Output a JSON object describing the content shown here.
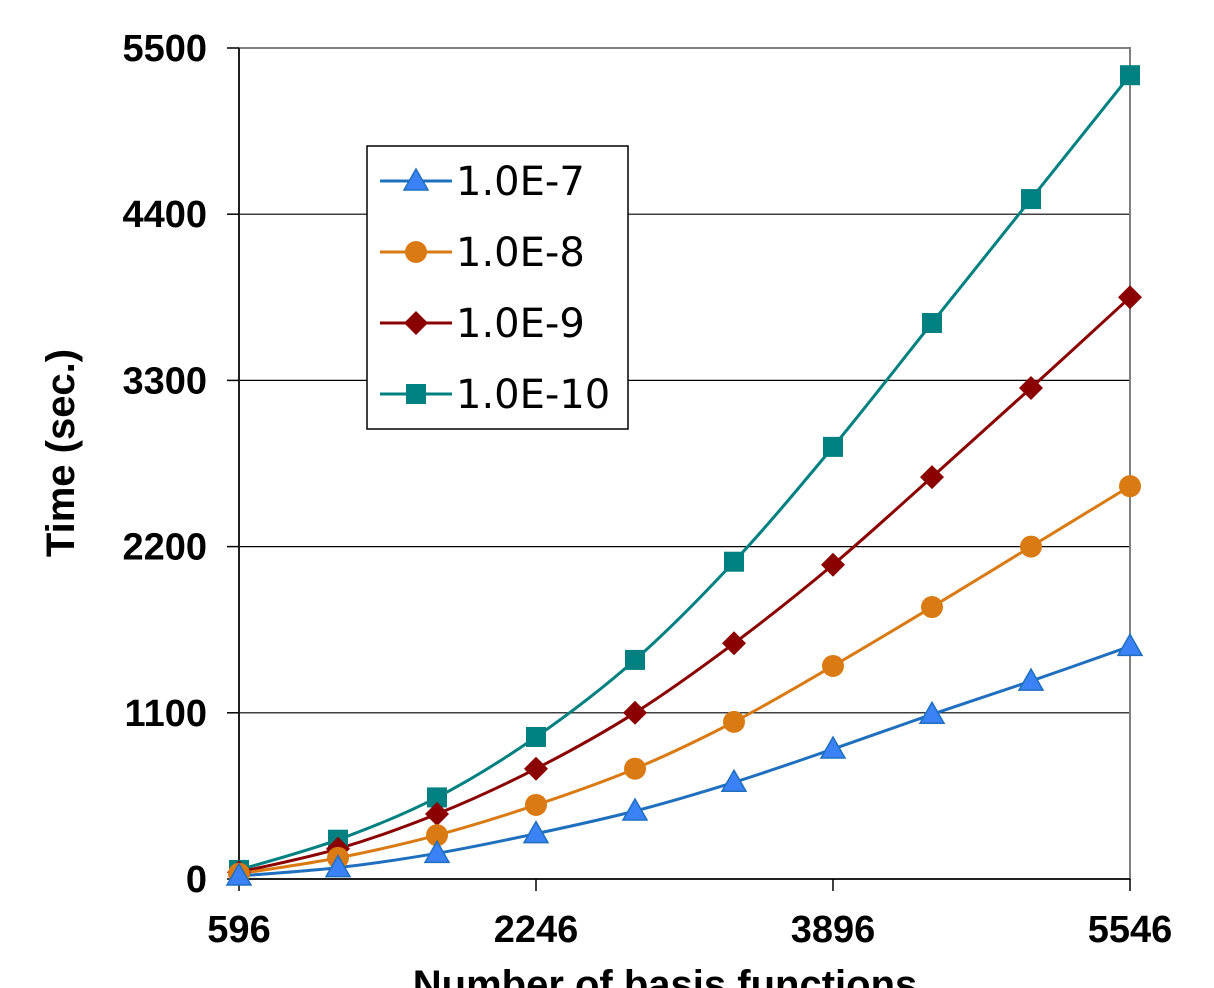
{
  "chart_data": {
    "type": "line",
    "title": "",
    "xlabel": "Number of basis functions",
    "ylabel": "Time (sec.)",
    "x": [
      596,
      1146,
      1696,
      2246,
      2796,
      3346,
      3896,
      4446,
      4996,
      5546
    ],
    "xticks": [
      "596",
      "2246",
      "3896",
      "5546"
    ],
    "xlim": [
      596,
      5546
    ],
    "yticks": [
      "0",
      "1100",
      "2200",
      "3300",
      "4400",
      "5500"
    ],
    "ylim": [
      0,
      5500
    ],
    "grid": "horizontal",
    "legend_position": "upper-left",
    "series": [
      {
        "name": "1.0E-7",
        "color": "#1f6fbf",
        "marker": "triangle",
        "values": [
          20,
          75,
          170,
          300,
          450,
          640,
          860,
          1090,
          1310,
          1540
        ]
      },
      {
        "name": "1.0E-8",
        "color": "#d97a12",
        "marker": "circle",
        "values": [
          35,
          140,
          290,
          490,
          730,
          1040,
          1410,
          1800,
          2200,
          2600
        ]
      },
      {
        "name": "1.0E-9",
        "color": "#8b0000",
        "marker": "diamond",
        "values": [
          45,
          200,
          430,
          730,
          1100,
          1560,
          2080,
          2660,
          3250,
          3850
        ]
      },
      {
        "name": "1.0E-10",
        "color": "#008080",
        "marker": "square",
        "values": [
          60,
          260,
          540,
          940,
          1450,
          2100,
          2860,
          3680,
          4500,
          5320
        ]
      }
    ]
  }
}
